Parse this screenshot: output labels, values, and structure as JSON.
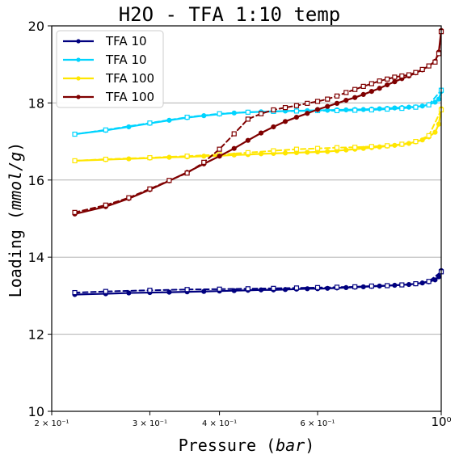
{
  "chart_data": {
    "type": "line",
    "title": "H2O - TFA 1:10 temp",
    "xlabel": "Pressure ($bar$)",
    "ylabel": "Loading ($mmol/g$)",
    "xscale": "log",
    "xlim": [
      0.2,
      1.0
    ],
    "ylim": [
      10,
      20
    ],
    "x_ticks": [
      {
        "value": 0.2,
        "label": "2 × 10⁻¹"
      },
      {
        "value": 0.3,
        "label": "3 × 10⁻¹"
      },
      {
        "value": 0.4,
        "label": "4 × 10⁻¹"
      },
      {
        "value": 0.6,
        "label": "6 × 10⁻¹"
      },
      {
        "value": 1.0,
        "label": "10⁰"
      }
    ],
    "y_ticks": [
      {
        "value": 10,
        "label": "10"
      },
      {
        "value": 12,
        "label": "12"
      },
      {
        "value": 14,
        "label": "14"
      },
      {
        "value": 16,
        "label": "16"
      },
      {
        "value": 18,
        "label": "18"
      },
      {
        "value": 20,
        "label": "20"
      }
    ],
    "grid": "horizontal",
    "legend": {
      "placement": "top-left",
      "entries": [
        "TFA 10",
        "TFA 10",
        "TFA 100",
        "TFA 100"
      ]
    },
    "series": [
      {
        "name": "TFA 10",
        "color": "#00007f",
        "line_style": "solid",
        "marker": "filled-circle",
        "x": [
          0.22,
          0.25,
          0.275,
          0.3,
          0.325,
          0.35,
          0.375,
          0.4,
          0.425,
          0.45,
          0.475,
          0.5,
          0.525,
          0.55,
          0.575,
          0.6,
          0.625,
          0.65,
          0.675,
          0.7,
          0.725,
          0.75,
          0.775,
          0.8,
          0.825,
          0.85,
          0.875,
          0.9,
          0.925,
          0.95,
          0.975,
          0.99,
          1.0
        ],
        "values": [
          13.03,
          13.05,
          13.07,
          13.08,
          13.09,
          13.1,
          13.11,
          13.12,
          13.13,
          13.14,
          13.15,
          13.15,
          13.16,
          13.17,
          13.18,
          13.18,
          13.19,
          13.2,
          13.21,
          13.22,
          13.23,
          13.24,
          13.25,
          13.26,
          13.27,
          13.28,
          13.29,
          13.31,
          13.33,
          13.36,
          13.41,
          13.49,
          13.65
        ]
      },
      {
        "name": "",
        "color": "#00007f",
        "line_style": "dashed",
        "marker": "open-square",
        "x": [
          0.22,
          0.25,
          0.3,
          0.35,
          0.4,
          0.45,
          0.5,
          0.55,
          0.6,
          0.65,
          0.7,
          0.75,
          0.8,
          0.85,
          0.9,
          0.95,
          1.0
        ],
        "values": [
          13.08,
          13.11,
          13.14,
          13.16,
          13.17,
          13.18,
          13.19,
          13.2,
          13.21,
          13.22,
          13.23,
          13.25,
          13.26,
          13.28,
          13.31,
          13.37,
          13.62
        ]
      },
      {
        "name": "TFA 10",
        "color": "#00d4ff",
        "line_style": "solid",
        "marker": "filled-circle",
        "x": [
          0.22,
          0.25,
          0.275,
          0.3,
          0.325,
          0.35,
          0.375,
          0.4,
          0.425,
          0.45,
          0.475,
          0.5,
          0.525,
          0.55,
          0.575,
          0.6,
          0.625,
          0.65,
          0.675,
          0.7,
          0.725,
          0.75,
          0.775,
          0.8,
          0.825,
          0.85,
          0.875,
          0.9,
          0.925,
          0.95,
          0.975,
          0.99,
          1.0
        ],
        "values": [
          17.19,
          17.29,
          17.38,
          17.47,
          17.55,
          17.62,
          17.67,
          17.71,
          17.74,
          17.76,
          17.77,
          17.78,
          17.79,
          17.8,
          17.8,
          17.81,
          17.81,
          17.82,
          17.82,
          17.83,
          17.83,
          17.84,
          17.85,
          17.86,
          17.87,
          17.88,
          17.89,
          17.9,
          17.92,
          17.96,
          18.02,
          18.1,
          18.3
        ]
      },
      {
        "name": "",
        "color": "#00d4ff",
        "line_style": "dashed",
        "marker": "open-square",
        "x": [
          0.22,
          0.25,
          0.3,
          0.35,
          0.4,
          0.45,
          0.5,
          0.55,
          0.6,
          0.65,
          0.7,
          0.75,
          0.8,
          0.85,
          0.9,
          0.95,
          1.0
        ],
        "values": [
          17.19,
          17.3,
          17.48,
          17.63,
          17.72,
          17.76,
          17.78,
          17.79,
          17.8,
          17.8,
          17.81,
          17.82,
          17.84,
          17.86,
          17.89,
          17.95,
          18.33
        ]
      },
      {
        "name": "TFA 100",
        "color": "#ffe600",
        "line_style": "solid",
        "marker": "filled-circle",
        "x": [
          0.22,
          0.25,
          0.275,
          0.3,
          0.325,
          0.35,
          0.375,
          0.4,
          0.425,
          0.45,
          0.475,
          0.5,
          0.525,
          0.55,
          0.575,
          0.6,
          0.625,
          0.65,
          0.675,
          0.7,
          0.725,
          0.75,
          0.775,
          0.8,
          0.825,
          0.85,
          0.875,
          0.9,
          0.925,
          0.95,
          0.975,
          0.99,
          1.0
        ],
        "values": [
          16.5,
          16.53,
          16.55,
          16.57,
          16.59,
          16.6,
          16.62,
          16.63,
          16.65,
          16.66,
          16.68,
          16.69,
          16.7,
          16.71,
          16.72,
          16.73,
          16.74,
          16.76,
          16.78,
          16.8,
          16.82,
          16.84,
          16.86,
          16.88,
          16.9,
          16.92,
          16.95,
          16.99,
          17.04,
          17.12,
          17.24,
          17.45,
          17.85
        ]
      },
      {
        "name": "",
        "color": "#ffe600",
        "line_style": "dashed",
        "marker": "open-square",
        "x": [
          0.22,
          0.25,
          0.3,
          0.35,
          0.4,
          0.45,
          0.5,
          0.55,
          0.6,
          0.65,
          0.7,
          0.75,
          0.8,
          0.85,
          0.9,
          0.95,
          1.0
        ],
        "values": [
          16.5,
          16.54,
          16.58,
          16.62,
          16.66,
          16.71,
          16.76,
          16.8,
          16.82,
          16.84,
          16.85,
          16.87,
          16.89,
          16.93,
          17.0,
          17.15,
          17.82
        ]
      },
      {
        "name": "TFA 100",
        "color": "#7f0000",
        "line_style": "solid",
        "marker": "filled-circle",
        "x": [
          0.22,
          0.25,
          0.275,
          0.3,
          0.325,
          0.35,
          0.375,
          0.4,
          0.425,
          0.45,
          0.475,
          0.5,
          0.525,
          0.55,
          0.575,
          0.6,
          0.625,
          0.65,
          0.675,
          0.7,
          0.725,
          0.75,
          0.775,
          0.8,
          0.825,
          0.85,
          0.875,
          0.9,
          0.925,
          0.95,
          0.975,
          0.99,
          1.0
        ],
        "values": [
          15.12,
          15.31,
          15.52,
          15.75,
          15.98,
          16.2,
          16.42,
          16.62,
          16.82,
          17.03,
          17.22,
          17.38,
          17.52,
          17.63,
          17.73,
          17.83,
          17.91,
          17.99,
          18.07,
          18.14,
          18.22,
          18.3,
          18.38,
          18.47,
          18.55,
          18.63,
          18.7,
          18.78,
          18.86,
          18.96,
          19.08,
          19.32,
          19.88
        ]
      },
      {
        "name": "",
        "color": "#7f0000",
        "line_style": "dashed",
        "marker": "open-square",
        "x": [
          0.22,
          0.25,
          0.275,
          0.3,
          0.325,
          0.35,
          0.375,
          0.4,
          0.425,
          0.45,
          0.475,
          0.5,
          0.525,
          0.55,
          0.575,
          0.6,
          0.625,
          0.65,
          0.675,
          0.7,
          0.725,
          0.75,
          0.775,
          0.8,
          0.825,
          0.85,
          0.875,
          0.9,
          0.925,
          0.95,
          0.975,
          0.99,
          1.0
        ],
        "values": [
          15.16,
          15.35,
          15.54,
          15.77,
          15.99,
          16.18,
          16.46,
          16.8,
          17.2,
          17.58,
          17.72,
          17.82,
          17.88,
          17.93,
          17.99,
          18.04,
          18.1,
          18.18,
          18.27,
          18.35,
          18.43,
          18.5,
          18.57,
          18.62,
          18.67,
          18.7,
          18.73,
          18.79,
          18.87,
          18.96,
          19.06,
          19.28,
          19.85
        ]
      }
    ]
  }
}
